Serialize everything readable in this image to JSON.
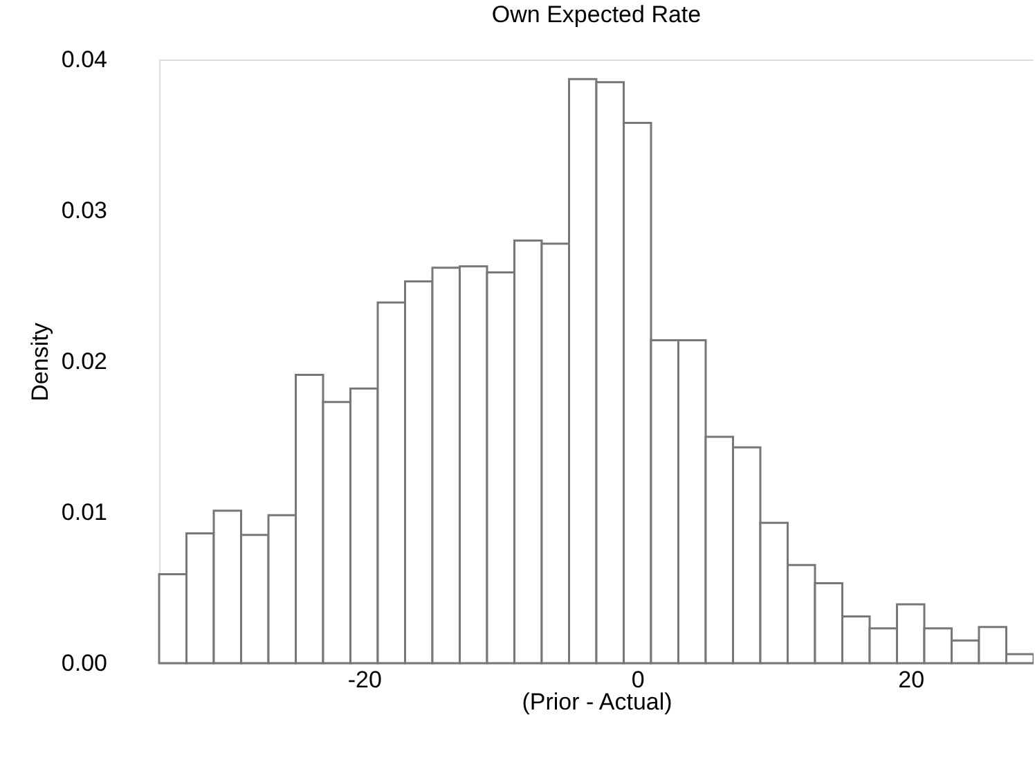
{
  "chart_data": {
    "type": "histogram",
    "title": "Own Expected Rate",
    "xlabel": "(Prior - Actual)",
    "ylabel": "Density",
    "bins": [
      -35,
      -33,
      -31,
      -29,
      -27,
      -25,
      -23,
      -21,
      -19,
      -17,
      -15,
      -13,
      -11,
      -9,
      -7,
      -5,
      -3,
      -1,
      1,
      3,
      5,
      7,
      9,
      11,
      13,
      15,
      17,
      19,
      21,
      23,
      25,
      27,
      29
    ],
    "values": [
      0.0059,
      0.0086,
      0.0101,
      0.0085,
      0.0098,
      0.0191,
      0.0173,
      0.0182,
      0.0239,
      0.0253,
      0.0262,
      0.0263,
      0.0259,
      0.028,
      0.0278,
      0.0387,
      0.0385,
      0.0358,
      0.0214,
      0.0214,
      0.015,
      0.0143,
      0.0093,
      0.0065,
      0.0053,
      0.0031,
      0.0023,
      0.0039,
      0.0023,
      0.0015,
      0.0024,
      0.0006
    ],
    "color": "#ffffff",
    "xlim": [
      -35,
      29
    ],
    "xticks": [
      -20,
      0,
      20
    ],
    "ylim": [
      0,
      0.04
    ],
    "yticks": [
      {
        "value": 0,
        "label": "0.00"
      },
      {
        "value": 0.01,
        "label": "0.01"
      },
      {
        "value": 0.02,
        "label": "0.02"
      },
      {
        "value": 0.03,
        "label": "0.03"
      },
      {
        "value": 0.04,
        "label": "0.04"
      }
    ],
    "grid": false
  }
}
